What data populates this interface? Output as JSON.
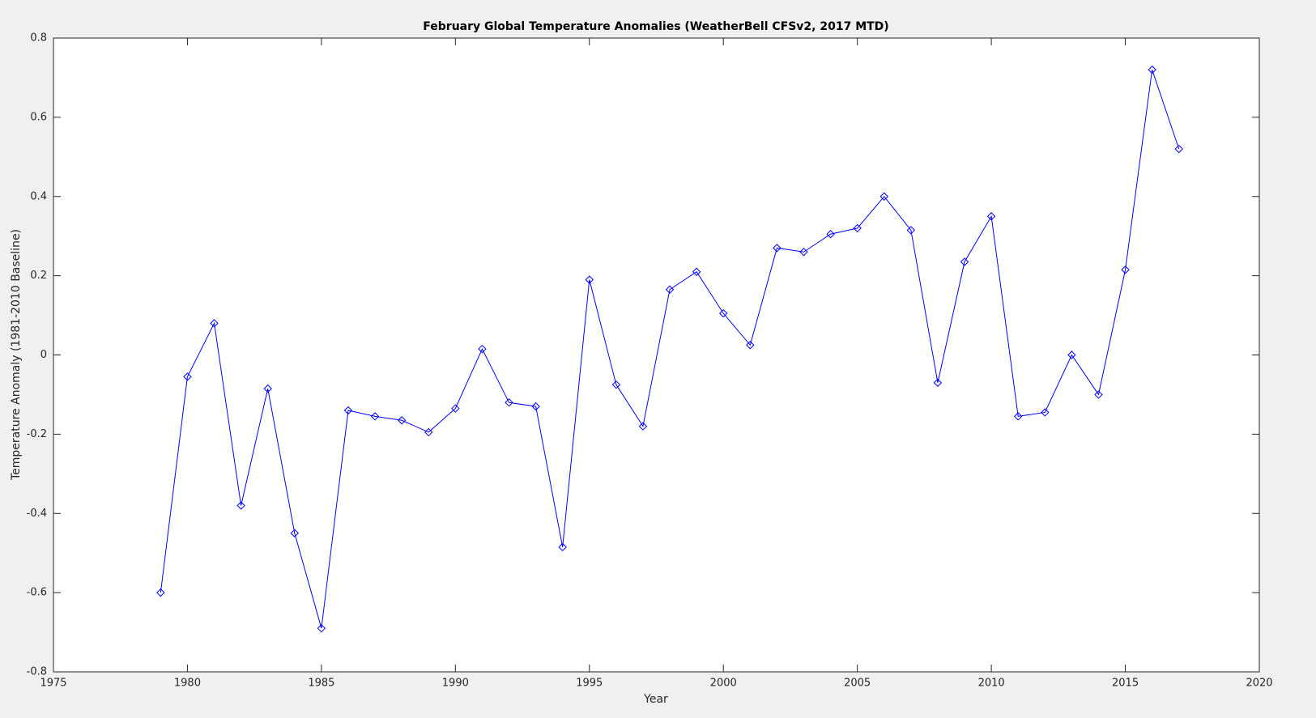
{
  "chart_data": {
    "type": "line",
    "title": "February Global Temperature Anomalies (WeatherBell CFSv2, 2017 MTD)",
    "x_label": "Year",
    "y_label": "Temperature Anomaly (1981-2010 Baseline)",
    "x": [
      1979,
      1980,
      1981,
      1982,
      1983,
      1984,
      1985,
      1986,
      1987,
      1988,
      1989,
      1990,
      1991,
      1992,
      1993,
      1994,
      1995,
      1996,
      1997,
      1998,
      1999,
      2000,
      2001,
      2002,
      2003,
      2004,
      2005,
      2006,
      2007,
      2008,
      2009,
      2010,
      2011,
      2012,
      2013,
      2014,
      2015,
      2016,
      2017
    ],
    "values": [
      -0.6,
      -0.055,
      0.08,
      -0.38,
      -0.085,
      -0.45,
      -0.69,
      -0.14,
      -0.155,
      -0.165,
      -0.195,
      -0.135,
      0.015,
      -0.12,
      -0.13,
      -0.485,
      0.19,
      -0.075,
      -0.18,
      0.165,
      0.21,
      0.105,
      0.025,
      0.27,
      0.26,
      0.305,
      0.32,
      0.4,
      0.315,
      -0.07,
      0.235,
      0.35,
      -0.155,
      -0.145,
      0.0,
      -0.1,
      0.215,
      0.72,
      0.52
    ],
    "color": "#0000ff",
    "xlim": [
      1975,
      2020
    ],
    "xticks": [
      1975,
      1980,
      1985,
      1990,
      1995,
      2000,
      2005,
      2010,
      2015,
      2020
    ],
    "ylim": [
      -0.8,
      0.8
    ],
    "yticks": [
      -0.8,
      -0.6,
      -0.4,
      -0.2,
      0,
      0.2,
      0.4,
      0.6,
      0.8
    ],
    "grid": false
  }
}
